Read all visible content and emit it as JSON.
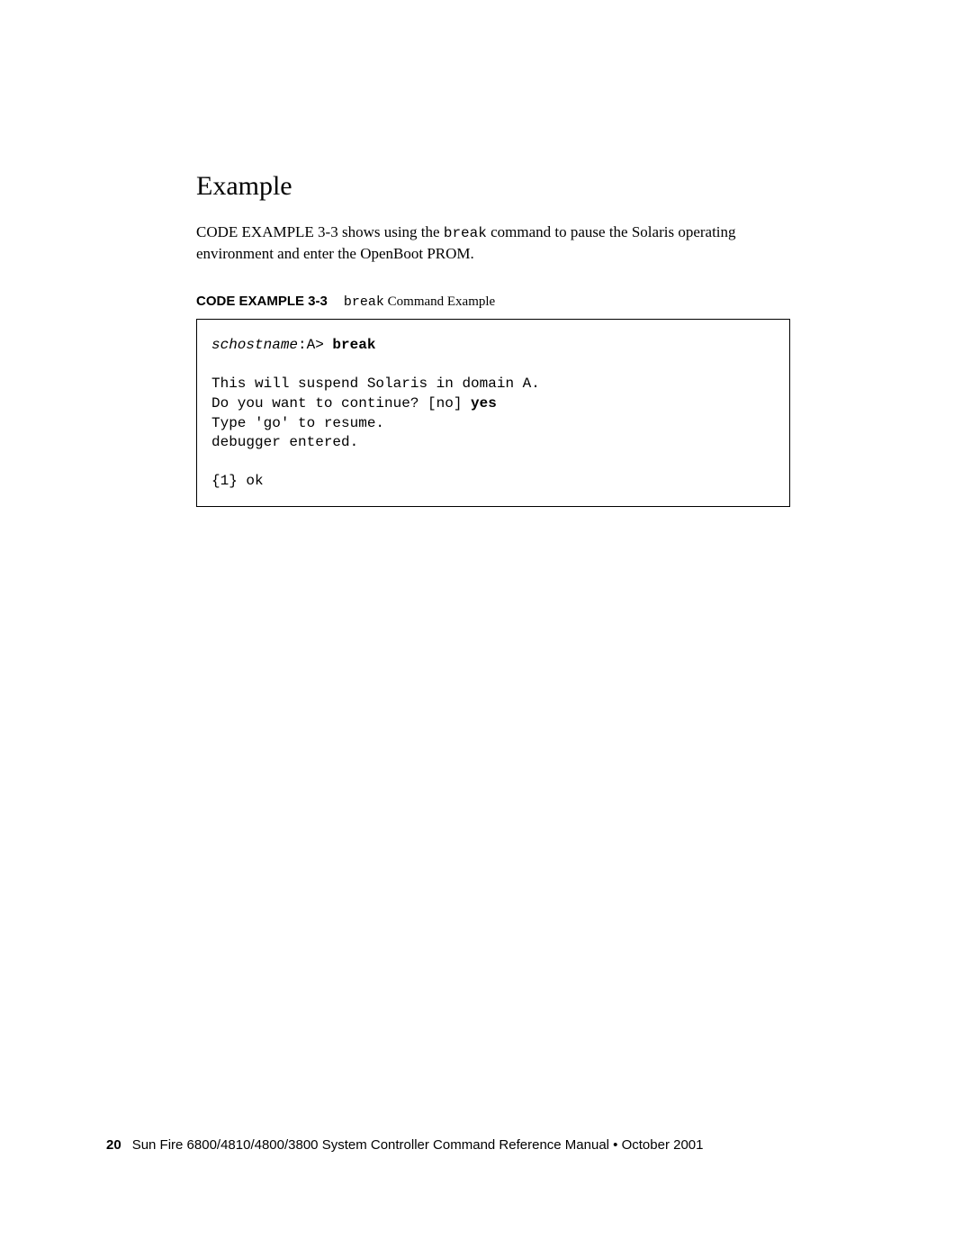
{
  "heading": "Example",
  "body_text_prefix": "CODE EXAMPLE 3-3 shows using the ",
  "body_text_code": "break",
  "body_text_suffix": " command to pause the Solaris operating environment and enter the OpenBoot PROM.",
  "caption_label": "CODE EXAMPLE 3-3",
  "caption_code": "break",
  "caption_suffix": " Command Example",
  "code": {
    "prompt_host": "schostname",
    "prompt_rest": ":A> ",
    "prompt_command": "break",
    "line1": "This will suspend Solaris in domain A.",
    "line2_prefix": "Do you want to continue? [no] ",
    "line2_response": "yes",
    "line3": "Type 'go' to resume.",
    "line4": "debugger entered.",
    "line5": "{1} ok"
  },
  "footer": {
    "page_number": "20",
    "text": "Sun Fire 6800/4810/4800/3800 System Controller Command Reference Manual • October 2001"
  }
}
